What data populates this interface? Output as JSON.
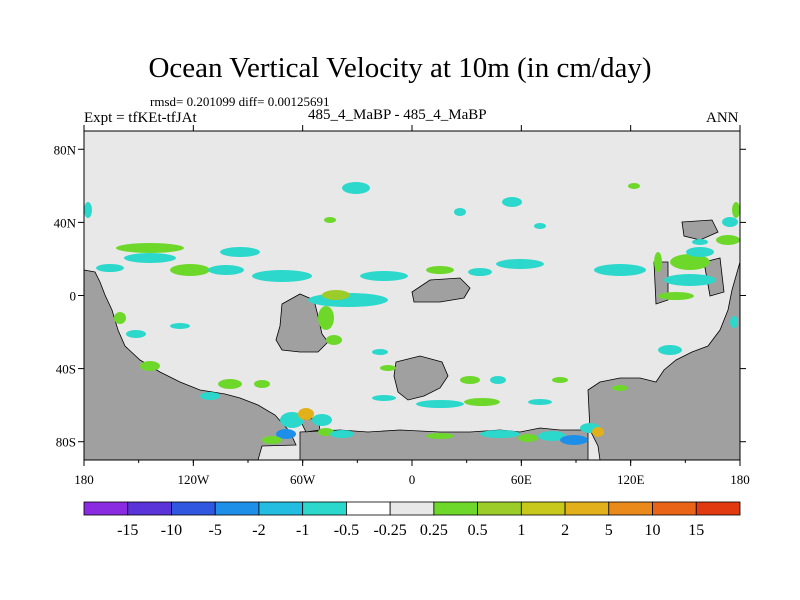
{
  "title": "Ocean Vertical Velocity at 10m (in cm/day)",
  "stats": "rmsd= 0.201099 diff= 0.00125691",
  "expt": "Expt = tfKEt-tfJAt",
  "cases": "485_4_MaBP - 485_4_MaBP",
  "season": "ANN",
  "map": {
    "lon_range": [
      -180,
      180
    ],
    "lat_range": [
      -90,
      90
    ],
    "x_ticks": [
      "180",
      "120W",
      "60W",
      "0",
      "60E",
      "120E",
      "180"
    ],
    "y_ticks": [
      "80N",
      "40N",
      "0",
      "40S",
      "80S"
    ],
    "land_color": "#a0a0a0",
    "ocean_color": "#e8e8e8"
  },
  "colorbar": {
    "labels": [
      "-15",
      "-10",
      "-5",
      "-2",
      "-1",
      "-0.5",
      "-0.25",
      "0.25",
      "0.5",
      "1",
      "2",
      "5",
      "10",
      "15"
    ],
    "colors": [
      "#8a2be2",
      "#5a34d8",
      "#2f57e0",
      "#1e8fe8",
      "#22bde0",
      "#2cd8cc",
      "#e8e8e8",
      "#6ed82a",
      "#9ccc2a",
      "#c8c81c",
      "#e2b01a",
      "#ea8a1a",
      "#ea6418",
      "#e23a10"
    ]
  }
}
